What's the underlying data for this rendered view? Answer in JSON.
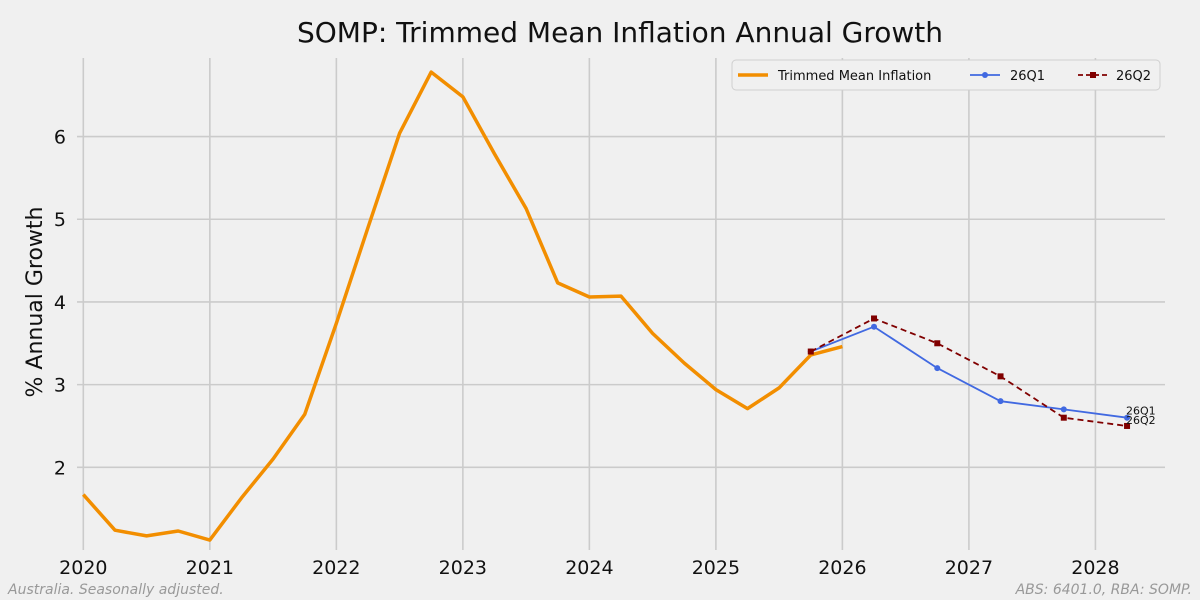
{
  "chart_data": {
    "type": "line",
    "title": "SOMP: Trimmed Mean Inflation Annual Growth",
    "xlabel": "",
    "ylabel": "% Annual Growth",
    "xlim": [
      2019.95,
      2028.55
    ],
    "ylim": [
      1.0,
      6.95
    ],
    "x_ticks": [
      {
        "value": 2020,
        "label": "2020"
      },
      {
        "value": 2021,
        "label": "2021"
      },
      {
        "value": 2022,
        "label": "2022"
      },
      {
        "value": 2023,
        "label": "2023"
      },
      {
        "value": 2024,
        "label": "2024"
      },
      {
        "value": 2025,
        "label": "2025"
      },
      {
        "value": 2026,
        "label": "2026"
      },
      {
        "value": 2027,
        "label": "2027"
      },
      {
        "value": 2028,
        "label": "2028"
      }
    ],
    "y_ticks": [
      {
        "value": 2,
        "label": "2"
      },
      {
        "value": 3,
        "label": "3"
      },
      {
        "value": 4,
        "label": "4"
      },
      {
        "value": 5,
        "label": "5"
      },
      {
        "value": 6,
        "label": "6"
      }
    ],
    "grid": true,
    "legend_position": "top-right",
    "series": [
      {
        "name": "Trimmed Mean Inflation",
        "color": "#f28e00",
        "style": "solid",
        "marker": "none",
        "x": [
          2020.0,
          2020.25,
          2020.5,
          2020.75,
          2021.0,
          2021.25,
          2021.5,
          2021.75,
          2022.0,
          2022.25,
          2022.5,
          2022.75,
          2023.0,
          2023.25,
          2023.5,
          2023.75,
          2024.0,
          2024.25,
          2024.5,
          2024.75,
          2025.0,
          2025.25,
          2025.5,
          2025.75,
          2026.0
        ],
        "y": [
          1.67,
          1.24,
          1.17,
          1.23,
          1.12,
          1.63,
          2.1,
          2.64,
          3.74,
          4.9,
          6.04,
          6.78,
          6.48,
          5.79,
          5.13,
          4.23,
          4.06,
          4.07,
          3.62,
          3.26,
          2.94,
          2.71,
          2.96,
          3.36,
          3.46
        ]
      },
      {
        "name": "26Q1",
        "color": "#4169e1",
        "style": "solid",
        "marker": "circle",
        "end_label": "26Q1",
        "x": [
          2025.75,
          2026.25,
          2026.75,
          2027.25,
          2027.75,
          2028.25
        ],
        "y": [
          3.4,
          3.7,
          3.2,
          2.8,
          2.7,
          2.6
        ]
      },
      {
        "name": "26Q2",
        "color": "#800000",
        "style": "dashed",
        "marker": "square",
        "end_label": "26Q2",
        "x": [
          2025.75,
          2026.25,
          2026.75,
          2027.25,
          2027.75,
          2028.25
        ],
        "y": [
          3.4,
          3.8,
          3.5,
          3.1,
          2.6,
          2.5
        ]
      }
    ],
    "footnote_left": "Australia. Seasonally adjusted.",
    "footnote_right": "ABS: 6401.0, RBA: SOMP."
  }
}
